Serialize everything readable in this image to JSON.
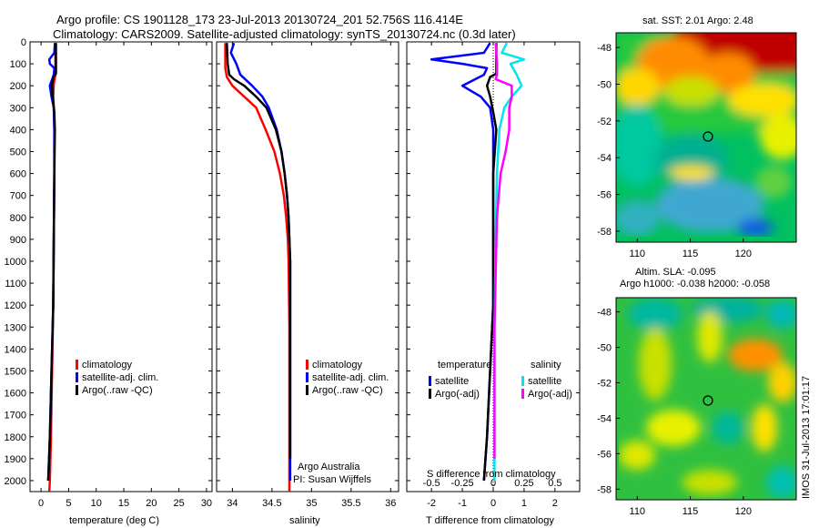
{
  "title": {
    "line1": "Argo profile: CS 1901128_173 23-Jul-2013 20130724_201 52.756S 116.414E",
    "line2": "Climatology: CARS2009. Satellite-adjusted climatology: synTS_20130724.nc (0.3d later)"
  },
  "credits": {
    "line1": "Argo Australia",
    "line2": "PI: Susan Wijffels",
    "stamp": "IMOS 31-Jul-2013 17:01:17"
  },
  "colors": {
    "climatology": "#ff0000",
    "satellite": "#0000ff",
    "argo": "#000000",
    "sat_salinity": "#00e5ee",
    "argo_salinity": "#ff00ff"
  },
  "chart_data": [
    {
      "type": "line",
      "id": "temperature",
      "xlabel": "temperature (deg C)",
      "ylabel": "",
      "xlim": [
        -2,
        31
      ],
      "ylim": [
        2050,
        0
      ],
      "xticks": [
        0,
        5,
        10,
        15,
        20,
        25,
        30
      ],
      "yticks": [
        0,
        100,
        200,
        300,
        400,
        500,
        600,
        700,
        800,
        900,
        1000,
        1100,
        1200,
        1300,
        1400,
        1500,
        1600,
        1700,
        1800,
        1900,
        2000
      ],
      "legend": {
        "placement": "lower-right",
        "entries": [
          "climatology",
          "satellite-adj. clim.",
          "Argo(..raw -QC)"
        ]
      },
      "series": [
        {
          "name": "climatology",
          "color": "#ff0000",
          "points": [
            [
              2.6,
              5
            ],
            [
              2.6,
              100
            ],
            [
              2.6,
              150
            ],
            [
              2.3,
              190
            ],
            [
              2.2,
              250
            ],
            [
              2.3,
              300
            ],
            [
              2.4,
              400
            ],
            [
              2.4,
              600
            ],
            [
              2.3,
              900
            ],
            [
              2.2,
              1200
            ],
            [
              2.0,
              1500
            ],
            [
              1.8,
              1800
            ],
            [
              1.6,
              2000
            ],
            [
              1.5,
              2050
            ]
          ]
        },
        {
          "name": "satellite-adj. clim.",
          "color": "#0000ff",
          "points": [
            [
              2.5,
              5
            ],
            [
              2.4,
              50
            ],
            [
              1.5,
              80
            ],
            [
              1.6,
              100
            ],
            [
              2.4,
              120
            ],
            [
              2.3,
              150
            ],
            [
              1.6,
              200
            ],
            [
              1.9,
              250
            ],
            [
              2.3,
              300
            ],
            [
              2.4,
              400
            ],
            [
              2.4,
              600
            ],
            [
              2.3,
              900
            ],
            [
              2.2,
              1200
            ],
            [
              1.9,
              1500
            ],
            [
              1.6,
              1800
            ],
            [
              1.3,
              2000
            ]
          ]
        },
        {
          "name": "Argo(..raw -QC)",
          "color": "#000000",
          "points": [
            [
              2.7,
              5
            ],
            [
              2.7,
              100
            ],
            [
              2.7,
              145
            ],
            [
              2.2,
              160
            ],
            [
              2.0,
              200
            ],
            [
              2.1,
              250
            ],
            [
              2.4,
              320
            ],
            [
              2.5,
              400
            ],
            [
              2.4,
              600
            ],
            [
              2.3,
              900
            ],
            [
              2.2,
              1200
            ],
            [
              1.9,
              1500
            ],
            [
              1.6,
              1800
            ],
            [
              1.3,
              2000
            ]
          ]
        }
      ]
    },
    {
      "type": "line",
      "id": "salinity",
      "xlabel": "salinity",
      "ylabel": "",
      "xlim": [
        33.8,
        36.1
      ],
      "ylim": [
        2050,
        0
      ],
      "xticks": [
        34,
        34.5,
        35,
        35.5,
        36
      ],
      "xticklabels": [
        "34",
        "34.5",
        "35",
        "35.5",
        "36"
      ],
      "legend": {
        "placement": "lower-right",
        "entries": [
          "climatology",
          "satellite-adj. clim.",
          "Argo(..raw -QC)"
        ]
      },
      "series": [
        {
          "name": "climatology",
          "color": "#ff0000",
          "points": [
            [
              33.91,
              5
            ],
            [
              33.91,
              120
            ],
            [
              33.93,
              160
            ],
            [
              34.0,
              200
            ],
            [
              34.15,
              250
            ],
            [
              34.3,
              300
            ],
            [
              34.42,
              400
            ],
            [
              34.53,
              500
            ],
            [
              34.6,
              600
            ],
            [
              34.65,
              700
            ],
            [
              34.68,
              800
            ],
            [
              34.7,
              900
            ],
            [
              34.71,
              1000
            ],
            [
              34.72,
              1300
            ],
            [
              34.72,
              1700
            ],
            [
              34.72,
              2050
            ]
          ]
        },
        {
          "name": "satellite-adj. clim.",
          "color": "#0000ff",
          "points": [
            [
              34.02,
              5
            ],
            [
              33.98,
              50
            ],
            [
              34.05,
              100
            ],
            [
              34.1,
              150
            ],
            [
              34.25,
              200
            ],
            [
              34.38,
              250
            ],
            [
              34.46,
              300
            ],
            [
              34.56,
              400
            ],
            [
              34.62,
              500
            ],
            [
              34.66,
              600
            ],
            [
              34.69,
              700
            ],
            [
              34.71,
              800
            ],
            [
              34.72,
              900
            ],
            [
              34.73,
              1000
            ],
            [
              34.73,
              1300
            ],
            [
              34.73,
              1700
            ],
            [
              34.73,
              2000
            ]
          ]
        },
        {
          "name": "Argo(..raw -QC)",
          "color": "#000000",
          "points": [
            [
              33.93,
              5
            ],
            [
              33.94,
              100
            ],
            [
              33.96,
              150
            ],
            [
              34.02,
              170
            ],
            [
              34.15,
              200
            ],
            [
              34.3,
              250
            ],
            [
              34.43,
              300
            ],
            [
              34.55,
              400
            ],
            [
              34.62,
              500
            ],
            [
              34.66,
              600
            ],
            [
              34.69,
              700
            ],
            [
              34.71,
              800
            ],
            [
              34.72,
              900
            ],
            [
              34.73,
              1000
            ],
            [
              34.73,
              1300
            ],
            [
              34.73,
              1700
            ],
            [
              34.73,
              1900
            ]
          ]
        }
      ]
    },
    {
      "type": "line",
      "id": "difference",
      "xlabel": "T difference from climatology",
      "top_label": "S difference from climatology",
      "ylabel": "",
      "xlim": [
        -2.8,
        2.8
      ],
      "ylim": [
        2050,
        0
      ],
      "xticks": [
        -2,
        -1,
        0,
        1,
        2
      ],
      "top_xticks": [
        -2,
        -1,
        0,
        1,
        2
      ],
      "top_xticklabels": [
        "-0.5",
        "-0.25",
        "0",
        "0.25",
        "0.5"
      ],
      "legend": {
        "placement": "lower-center",
        "temperature_heading": "temperature",
        "salinity_heading": "salinity",
        "entries": [
          "satellite",
          "Argo(-adj)",
          "satellite",
          "Argo(-adj)"
        ]
      },
      "series": [
        {
          "name": "temperature satellite",
          "color": "#0000ff",
          "points": [
            [
              -0.1,
              5
            ],
            [
              -0.3,
              50
            ],
            [
              -2.0,
              80
            ],
            [
              -1.0,
              100
            ],
            [
              -0.2,
              120
            ],
            [
              -0.3,
              150
            ],
            [
              -1.0,
              200
            ],
            [
              -0.4,
              250
            ],
            [
              -0.1,
              300
            ],
            [
              0,
              400
            ],
            [
              0,
              600
            ],
            [
              0,
              900
            ],
            [
              0,
              1200
            ],
            [
              -0.1,
              1500
            ],
            [
              -0.2,
              1800
            ],
            [
              -0.3,
              2000
            ]
          ]
        },
        {
          "name": "temperature Argo(-adj)",
          "color": "#000000",
          "points": [
            [
              0.1,
              5
            ],
            [
              0.1,
              100
            ],
            [
              0.1,
              145
            ],
            [
              -0.1,
              160
            ],
            [
              -0.2,
              200
            ],
            [
              -0.1,
              250
            ],
            [
              0,
              320
            ],
            [
              0.1,
              400
            ],
            [
              0,
              600
            ],
            [
              0,
              900
            ],
            [
              0,
              1200
            ],
            [
              -0.1,
              1500
            ],
            [
              -0.2,
              1800
            ],
            [
              -0.3,
              2000
            ]
          ]
        },
        {
          "name": "salinity satellite",
          "color": "#00e5ee",
          "points": [
            [
              0.44,
              5
            ],
            [
              0.28,
              50
            ],
            [
              1.0,
              80
            ],
            [
              0.56,
              100
            ],
            [
              0.76,
              150
            ],
            [
              0.92,
              200
            ],
            [
              0.6,
              250
            ],
            [
              0.36,
              300
            ],
            [
              0.2,
              400
            ],
            [
              0.12,
              600
            ],
            [
              0.08,
              900
            ],
            [
              0.04,
              1300
            ],
            [
              0.04,
              1700
            ],
            [
              0.04,
              2000
            ]
          ]
        },
        {
          "name": "salinity Argo(-adj)",
          "color": "#ff00ff",
          "points": [
            [
              0.08,
              5
            ],
            [
              0.12,
              100
            ],
            [
              0.12,
              150
            ],
            [
              0.08,
              170
            ],
            [
              0.6,
              200
            ],
            [
              0.6,
              250
            ],
            [
              0.52,
              300
            ],
            [
              0.52,
              400
            ],
            [
              0.4,
              500
            ],
            [
              0.24,
              600
            ],
            [
              0.12,
              800
            ],
            [
              0.04,
              1300
            ],
            [
              0.04,
              1700
            ],
            [
              0.04,
              1900
            ]
          ]
        }
      ]
    },
    {
      "type": "heatmap",
      "id": "sst-map",
      "title": "sat. SST: 2.01  Argo: 2.48",
      "xlim": [
        108,
        125
      ],
      "ylim": [
        -58.6,
        -47.2
      ],
      "xticks": [
        110,
        115,
        120
      ],
      "yticks": [
        -48,
        -50,
        -52,
        -54,
        -56,
        -58
      ],
      "marker": {
        "lon": 116.414,
        "lat": -52.756
      }
    },
    {
      "type": "heatmap",
      "id": "sla-map",
      "title": "Altim. SLA: -0.095",
      "subtitle": "Argo h1000: -0.038 h2000: -0.058",
      "xlim": [
        108,
        125
      ],
      "ylim": [
        -58.6,
        -47.2
      ],
      "xticks": [
        110,
        115,
        120
      ],
      "yticks": [
        -48,
        -50,
        -52,
        -54,
        -56,
        -58
      ],
      "marker": {
        "lon": 116.414,
        "lat": -52.756
      }
    }
  ]
}
